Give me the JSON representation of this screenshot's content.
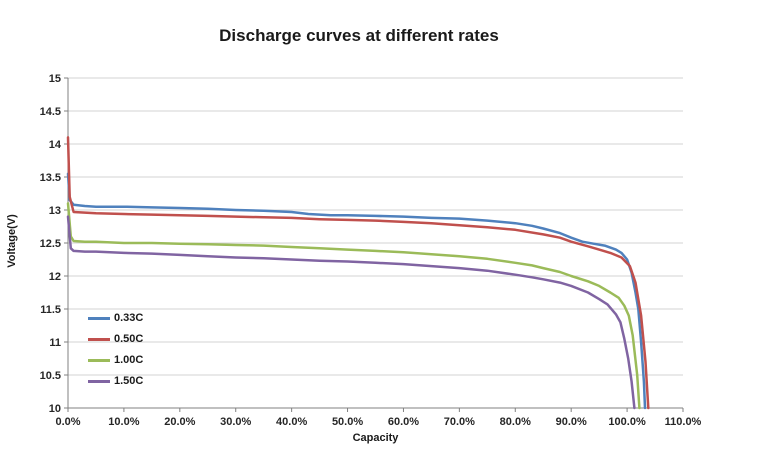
{
  "page": {
    "background": "#ffffff"
  },
  "chart_data": {
    "type": "line",
    "title": "Discharge curves at different rates",
    "xlabel": "Capacity",
    "ylabel": "Voltage(V)",
    "xlim": [
      0,
      110
    ],
    "ylim": [
      10,
      15
    ],
    "grid": "horizontal",
    "legend_position": "inside-lower-left",
    "x_ticks": [
      0,
      10,
      20,
      30,
      40,
      50,
      60,
      70,
      80,
      90,
      100,
      110
    ],
    "x_tick_labels": [
      "0.0%",
      "10.0%",
      "20.0%",
      "30.0%",
      "40.0%",
      "50.0%",
      "60.0%",
      "70.0%",
      "80.0%",
      "90.0%",
      "100.0%",
      "110.0%"
    ],
    "y_ticks": [
      10,
      10.5,
      11,
      11.5,
      12,
      12.5,
      13,
      13.5,
      14,
      14.5,
      15
    ],
    "y_tick_labels": [
      "10",
      "10.5",
      "11",
      "11.5",
      "12",
      "12.5",
      "13",
      "13.5",
      "14",
      "14.5",
      "15"
    ],
    "series": [
      {
        "name": "0.33C",
        "color": "#4F81BD",
        "points": [
          [
            0,
            13.55
          ],
          [
            0.3,
            13.15
          ],
          [
            1,
            13.08
          ],
          [
            3,
            13.06
          ],
          [
            5,
            13.05
          ],
          [
            10,
            13.05
          ],
          [
            15,
            13.04
          ],
          [
            20,
            13.03
          ],
          [
            25,
            13.02
          ],
          [
            30,
            13.0
          ],
          [
            35,
            12.99
          ],
          [
            40,
            12.97
          ],
          [
            43,
            12.94
          ],
          [
            47,
            12.92
          ],
          [
            50,
            12.92
          ],
          [
            55,
            12.91
          ],
          [
            60,
            12.9
          ],
          [
            65,
            12.88
          ],
          [
            70,
            12.87
          ],
          [
            75,
            12.84
          ],
          [
            80,
            12.8
          ],
          [
            83,
            12.76
          ],
          [
            85,
            12.72
          ],
          [
            88,
            12.65
          ],
          [
            90,
            12.58
          ],
          [
            92,
            12.52
          ],
          [
            94,
            12.49
          ],
          [
            96,
            12.46
          ],
          [
            98,
            12.4
          ],
          [
            99,
            12.35
          ],
          [
            100,
            12.25
          ],
          [
            100.8,
            12.05
          ],
          [
            101.5,
            11.75
          ],
          [
            102,
            11.5
          ],
          [
            102.5,
            11.0
          ],
          [
            103,
            10.4
          ],
          [
            103.2,
            10.0
          ]
        ]
      },
      {
        "name": "0.50C",
        "color": "#C0504D",
        "points": [
          [
            0,
            14.1
          ],
          [
            0.3,
            13.2
          ],
          [
            1,
            12.97
          ],
          [
            3,
            12.96
          ],
          [
            5,
            12.95
          ],
          [
            10,
            12.94
          ],
          [
            15,
            12.93
          ],
          [
            20,
            12.92
          ],
          [
            25,
            12.91
          ],
          [
            30,
            12.9
          ],
          [
            35,
            12.89
          ],
          [
            40,
            12.88
          ],
          [
            45,
            12.86
          ],
          [
            50,
            12.85
          ],
          [
            55,
            12.84
          ],
          [
            60,
            12.82
          ],
          [
            65,
            12.8
          ],
          [
            70,
            12.77
          ],
          [
            75,
            12.74
          ],
          [
            80,
            12.7
          ],
          [
            85,
            12.63
          ],
          [
            88,
            12.58
          ],
          [
            90,
            12.52
          ],
          [
            93,
            12.45
          ],
          [
            95,
            12.4
          ],
          [
            97,
            12.35
          ],
          [
            99,
            12.28
          ],
          [
            100.5,
            12.15
          ],
          [
            101.5,
            11.9
          ],
          [
            102.5,
            11.4
          ],
          [
            103.3,
            10.7
          ],
          [
            103.8,
            10.0
          ]
        ]
      },
      {
        "name": "1.00C",
        "color": "#9BBB59",
        "points": [
          [
            0,
            13.1
          ],
          [
            0.5,
            12.6
          ],
          [
            1,
            12.53
          ],
          [
            3,
            12.52
          ],
          [
            5,
            12.52
          ],
          [
            10,
            12.5
          ],
          [
            15,
            12.5
          ],
          [
            20,
            12.49
          ],
          [
            25,
            12.48
          ],
          [
            30,
            12.47
          ],
          [
            35,
            12.46
          ],
          [
            40,
            12.44
          ],
          [
            45,
            12.42
          ],
          [
            50,
            12.4
          ],
          [
            55,
            12.38
          ],
          [
            60,
            12.36
          ],
          [
            65,
            12.33
          ],
          [
            70,
            12.3
          ],
          [
            75,
            12.26
          ],
          [
            80,
            12.2
          ],
          [
            83,
            12.16
          ],
          [
            85,
            12.12
          ],
          [
            88,
            12.06
          ],
          [
            90,
            12.0
          ],
          [
            93,
            11.92
          ],
          [
            95,
            11.85
          ],
          [
            97,
            11.75
          ],
          [
            98.5,
            11.67
          ],
          [
            99.5,
            11.55
          ],
          [
            100.3,
            11.4
          ],
          [
            101,
            11.1
          ],
          [
            101.8,
            10.5
          ],
          [
            102.2,
            10.0
          ]
        ]
      },
      {
        "name": "1.50C",
        "color": "#8064A2",
        "points": [
          [
            0,
            12.9
          ],
          [
            0.5,
            12.42
          ],
          [
            1,
            12.38
          ],
          [
            3,
            12.37
          ],
          [
            5,
            12.37
          ],
          [
            10,
            12.35
          ],
          [
            15,
            12.34
          ],
          [
            20,
            12.32
          ],
          [
            25,
            12.3
          ],
          [
            30,
            12.28
          ],
          [
            35,
            12.27
          ],
          [
            40,
            12.25
          ],
          [
            45,
            12.23
          ],
          [
            50,
            12.22
          ],
          [
            55,
            12.2
          ],
          [
            60,
            12.18
          ],
          [
            65,
            12.15
          ],
          [
            70,
            12.12
          ],
          [
            75,
            12.08
          ],
          [
            80,
            12.02
          ],
          [
            83,
            11.98
          ],
          [
            85,
            11.95
          ],
          [
            88,
            11.9
          ],
          [
            90,
            11.85
          ],
          [
            93,
            11.75
          ],
          [
            95,
            11.65
          ],
          [
            96.5,
            11.57
          ],
          [
            98,
            11.42
          ],
          [
            98.8,
            11.3
          ],
          [
            99.5,
            11.05
          ],
          [
            100.2,
            10.75
          ],
          [
            100.8,
            10.4
          ],
          [
            101.3,
            10.0
          ]
        ]
      }
    ],
    "style": {
      "grid_color": "#d3d3d3",
      "axis_color": "#808080",
      "tick_label_color": "#262626",
      "line_width": 2.5
    }
  }
}
